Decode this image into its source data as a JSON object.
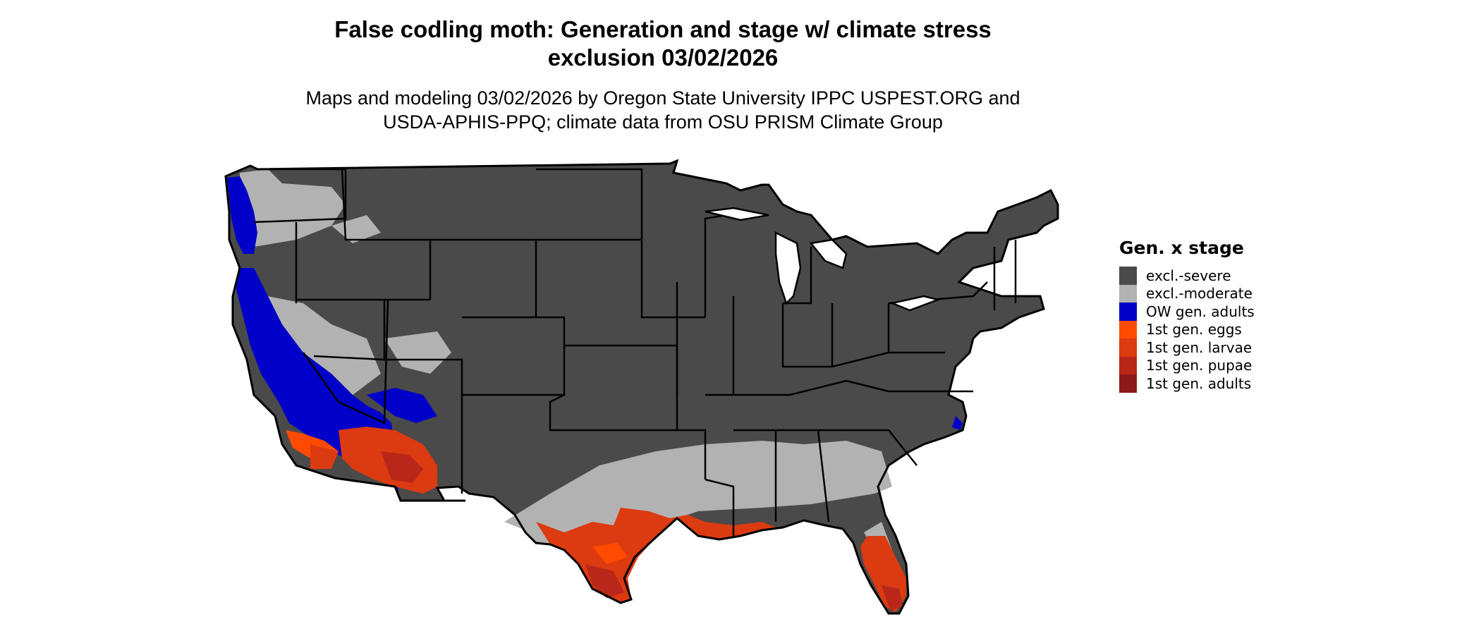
{
  "title": {
    "line1": "False codling moth: Generation and stage w/ climate stress",
    "line2": "exclusion 03/02/2026"
  },
  "subtitle": {
    "line1": "Maps and modeling 03/02/2026 by Oregon State University IPPC USPEST.ORG and",
    "line2": "USDA-APHIS-PPQ; climate data from OSU PRISM Climate Group"
  },
  "legend": {
    "title": "Gen. x stage",
    "items": [
      {
        "label": "excl.-severe",
        "color": "#4a4a4a"
      },
      {
        "label": "excl.-moderate",
        "color": "#b2b2b2"
      },
      {
        "label": "OW gen. adults",
        "color": "#0000c8"
      },
      {
        "label": "1st gen. eggs",
        "color": "#ff4a00"
      },
      {
        "label": "1st gen. larvae",
        "color": "#dc3a10"
      },
      {
        "label": "1st gen. pupae",
        "color": "#b8271a"
      },
      {
        "label": "1st gen. adults",
        "color": "#8c1a1a"
      }
    ]
  }
}
